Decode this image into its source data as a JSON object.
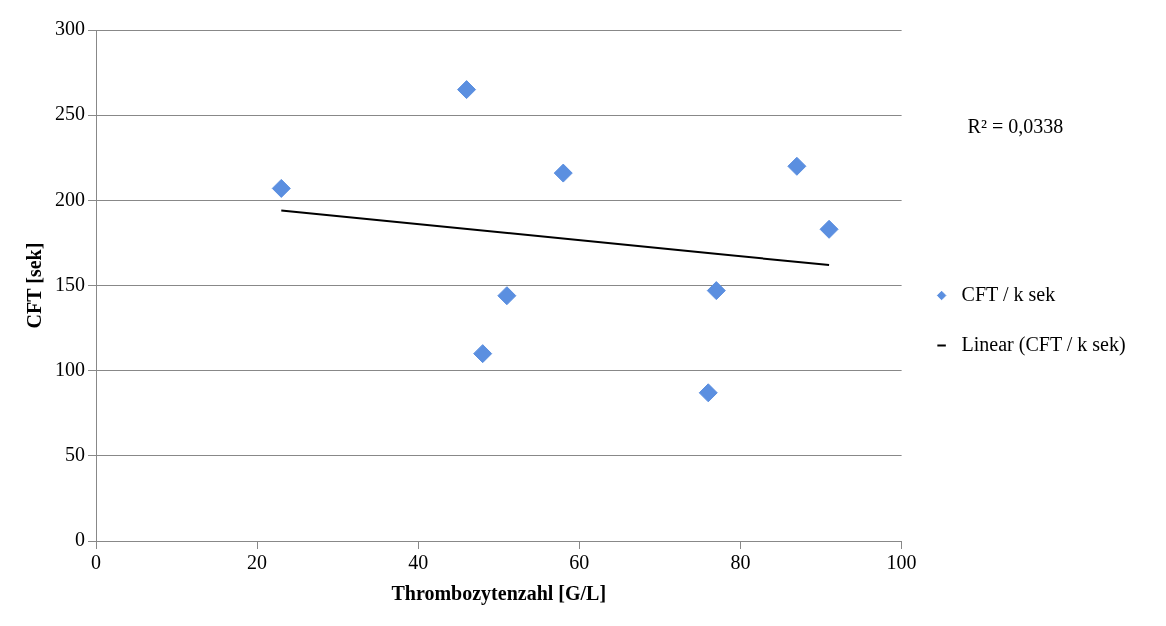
{
  "chart_data": {
    "type": "scatter",
    "xlabel": "Thrombozytenzahl [G/L]",
    "ylabel": "CFT [sek]",
    "xlim": [
      0,
      100
    ],
    "xticks": [
      0,
      20,
      40,
      60,
      80,
      100
    ],
    "ylim": [
      0,
      300
    ],
    "yticks": [
      0,
      50,
      100,
      150,
      200,
      250,
      300
    ],
    "grid": "y",
    "legend": "right",
    "marker": "diamond",
    "annotations": [
      "R² = 0,0338"
    ],
    "series": [
      {
        "name": "CFT / k sek",
        "color": "#5b8fe0",
        "x": [
          23,
          46,
          58,
          87,
          91,
          51,
          77,
          48,
          76
        ],
        "values": [
          207,
          265,
          216,
          220,
          183,
          144,
          147,
          110,
          87
        ]
      },
      {
        "name": "Linear (CFT / k sek)",
        "type": "line",
        "color": "#000000",
        "marker": "none",
        "line_style": "solid",
        "x": [
          23,
          91
        ],
        "values": [
          194,
          162
        ]
      }
    ]
  }
}
